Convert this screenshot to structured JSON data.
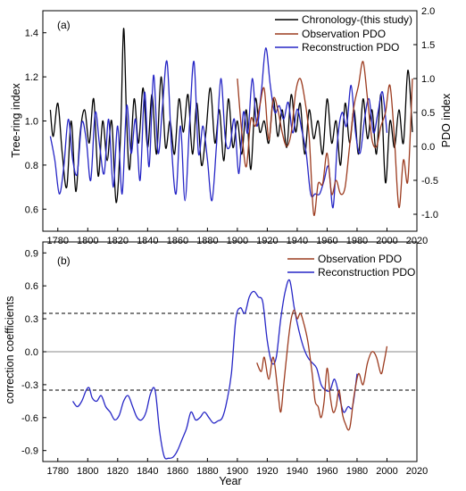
{
  "chart_data": [
    {
      "panel": "(a)",
      "type": "line",
      "xlim": [
        1770,
        2020
      ],
      "ylim_left": [
        0.5,
        1.5
      ],
      "ylim_right": [
        -1.25,
        2.0
      ],
      "ylabel_left": "Tree-ring index",
      "ylabel_right": "PDO index",
      "x_ticks": [
        "1780",
        "1800",
        "1820",
        "1840",
        "1860",
        "1880",
        "1900",
        "1920",
        "1940",
        "1960",
        "1980",
        "2000",
        "2020"
      ],
      "y_ticks_left": [
        "0.6",
        "0.8",
        "1.0",
        "1.2",
        "1.4"
      ],
      "y_ticks_right": [
        "-1.0",
        "-0.5",
        "0.0",
        "0.5",
        "1.0",
        "1.5",
        "2.0"
      ],
      "legend_position": "top-right",
      "series": [
        {
          "name": "Chronology-(this study)",
          "color": "#000000",
          "axis": "left",
          "x": [
            1775,
            1777,
            1780,
            1783,
            1786,
            1789,
            1792,
            1795,
            1798,
            1801,
            1804,
            1807,
            1810,
            1813,
            1816,
            1819,
            1822,
            1824,
            1826,
            1828,
            1831,
            1834,
            1837,
            1840,
            1843,
            1846,
            1849,
            1852,
            1855,
            1858,
            1861,
            1864,
            1867,
            1870,
            1873,
            1876,
            1879,
            1882,
            1885,
            1888,
            1891,
            1894,
            1897,
            1900,
            1903,
            1906,
            1909,
            1912,
            1915,
            1918,
            1921,
            1924,
            1927,
            1930,
            1933,
            1936,
            1939,
            1942,
            1945,
            1948,
            1951,
            1954,
            1957,
            1960,
            1963,
            1966,
            1969,
            1972,
            1975,
            1978,
            1981,
            1984,
            1987,
            1990,
            1993,
            1996,
            1999,
            2002,
            2005,
            2008,
            2011,
            2014,
            2017
          ],
          "values": [
            1.05,
            0.93,
            1.08,
            0.85,
            0.7,
            1.0,
            0.68,
            0.95,
            1.05,
            0.9,
            1.1,
            0.75,
            1.0,
            0.82,
            1.0,
            0.63,
            0.95,
            1.42,
            1.0,
            0.78,
            1.1,
            0.9,
            1.15,
            0.88,
            1.12,
            0.85,
            1.2,
            0.88,
            1.0,
            0.85,
            1.1,
            0.95,
            1.12,
            0.85,
            1.08,
            0.8,
            0.95,
            1.15,
            0.9,
            1.05,
            0.82,
            1.1,
            0.88,
            1.0,
            0.85,
            1.05,
            0.78,
            1.1,
            0.95,
            1.0,
            0.9,
            1.1,
            0.93,
            1.05,
            0.88,
            1.12,
            0.95,
            1.08,
            0.85,
            1.05,
            0.92,
            1.0,
            0.85,
            1.1,
            0.9,
            1.0,
            0.8,
            1.08,
            0.9,
            1.05,
            0.85,
            1.1,
            0.92,
            1.05,
            0.85,
            1.12,
            0.72,
            1.0,
            0.88,
            1.05,
            0.9,
            1.23,
            0.95
          ]
        },
        {
          "name": "Observation PDO",
          "color": "#9c3b1f",
          "axis": "right",
          "x": [
            1900,
            1903,
            1906,
            1909,
            1912,
            1915,
            1918,
            1921,
            1924,
            1927,
            1930,
            1933,
            1936,
            1939,
            1942,
            1945,
            1948,
            1951,
            1954,
            1957,
            1960,
            1963,
            1966,
            1969,
            1972,
            1975,
            1978,
            1981,
            1984,
            1987,
            1990,
            1993,
            1996,
            1999,
            2002,
            2005,
            2008,
            2011,
            2014,
            2017
          ],
          "values": [
            1.0,
            0.2,
            -0.3,
            0.4,
            0.3,
            0.6,
            0.85,
            0.1,
            0.7,
            0.55,
            0.2,
            0.0,
            0.2,
            0.8,
            1.0,
            0.7,
            0.15,
            -1.0,
            -0.55,
            -0.55,
            -0.1,
            -0.7,
            -0.5,
            -0.7,
            -0.6,
            0.0,
            0.6,
            0.9,
            1.25,
            0.7,
            0.1,
            0.0,
            0.3,
            0.5,
            0.9,
            0.1,
            -0.9,
            -0.2,
            -0.5,
            1.0
          ]
        },
        {
          "name": "Reconstruction PDO",
          "color": "#2626c6",
          "axis": "right",
          "x": [
            1775,
            1778,
            1781,
            1784,
            1787,
            1790,
            1793,
            1796,
            1799,
            1802,
            1805,
            1808,
            1811,
            1814,
            1817,
            1820,
            1823,
            1826,
            1829,
            1832,
            1835,
            1838,
            1841,
            1844,
            1847,
            1850,
            1853,
            1856,
            1859,
            1862,
            1865,
            1868,
            1871,
            1874,
            1877,
            1880,
            1883,
            1886,
            1889,
            1892,
            1895,
            1898,
            1901,
            1904,
            1907,
            1910,
            1913,
            1916,
            1919,
            1922,
            1925,
            1928,
            1931,
            1934,
            1937,
            1940,
            1943,
            1946,
            1949,
            1952,
            1955,
            1958,
            1961,
            1964,
            1967,
            1970,
            1973,
            1976,
            1979,
            1982,
            1985,
            1988,
            1991,
            1994,
            1997,
            2000
          ],
          "values": [
            0.15,
            -0.2,
            -0.7,
            -0.3,
            0.4,
            -0.2,
            -0.4,
            0.35,
            0.1,
            -0.5,
            0.5,
            0.0,
            -0.4,
            0.4,
            -0.6,
            0.3,
            -0.7,
            0.6,
            -0.1,
            0.4,
            -0.5,
            0.8,
            -0.3,
            1.05,
            -0.1,
            0.6,
            1.25,
            0.0,
            -0.7,
            0.3,
            -0.8,
            0.3,
            1.25,
            -0.1,
            0.3,
            -0.2,
            -0.8,
            0.0,
            1.0,
            0.1,
            0.0,
            0.4,
            -0.4,
            0.5,
            0.2,
            1.0,
            0.3,
            0.8,
            1.45,
            0.9,
            0.5,
            0.6,
            0.4,
            0.65,
            0.2,
            0.55,
            0.25,
            -0.1,
            -0.7,
            -0.7,
            -0.7,
            -0.5,
            -0.3,
            -0.9,
            0.1,
            0.5,
            0.3,
            0.9,
            0.2,
            -0.1,
            0.4,
            0.7,
            0.2,
            0.5,
            0.8,
            0.2
          ]
        }
      ]
    },
    {
      "panel": "(b)",
      "type": "line",
      "xlim": [
        1770,
        2020
      ],
      "ylim": [
        -1.0,
        1.0
      ],
      "xlabel": "Year",
      "ylabel": "correction coefficients",
      "x_ticks": [
        "1780",
        "1800",
        "1820",
        "1840",
        "1860",
        "1880",
        "1900",
        "1920",
        "1940",
        "1960",
        "1980",
        "2000",
        "2020"
      ],
      "y_ticks": [
        "-0.9",
        "-0.6",
        "-0.3",
        "0.0",
        "0.3",
        "0.6",
        "0.9"
      ],
      "significance_lines": [
        0.35,
        -0.35
      ],
      "zero_line": 0.0,
      "legend_position": "top-right",
      "series": [
        {
          "name": "Observation PDO",
          "color": "#9c3b1f",
          "x": [
            1913,
            1916,
            1918,
            1921,
            1924,
            1927,
            1929,
            1931,
            1934,
            1936,
            1938,
            1940,
            1942,
            1944,
            1947,
            1950,
            1952,
            1954,
            1956,
            1958,
            1960,
            1962,
            1964,
            1966,
            1968,
            1970,
            1972,
            1975,
            1978,
            1981,
            1984,
            1987,
            1990,
            1993,
            1996,
            1998,
            2000
          ],
          "values": [
            -0.1,
            -0.18,
            -0.05,
            -0.25,
            -0.05,
            -0.35,
            -0.55,
            -0.3,
            0.1,
            0.3,
            0.38,
            0.3,
            0.35,
            0.28,
            0.1,
            -0.2,
            -0.45,
            -0.5,
            -0.6,
            -0.45,
            -0.15,
            -0.4,
            -0.55,
            -0.5,
            -0.35,
            -0.55,
            -0.65,
            -0.7,
            -0.4,
            -0.2,
            -0.3,
            -0.1,
            0.0,
            -0.05,
            -0.2,
            -0.1,
            0.05
          ]
        },
        {
          "name": "Reconstruction PDO",
          "color": "#2626c6",
          "x": [
            1790,
            1793,
            1796,
            1799,
            1801,
            1803,
            1806,
            1809,
            1812,
            1815,
            1818,
            1821,
            1824,
            1827,
            1830,
            1833,
            1836,
            1839,
            1842,
            1845,
            1848,
            1851,
            1854,
            1857,
            1860,
            1863,
            1866,
            1869,
            1872,
            1875,
            1878,
            1881,
            1884,
            1887,
            1890,
            1893,
            1896,
            1899,
            1902,
            1905,
            1908,
            1911,
            1914,
            1917,
            1920,
            1923,
            1926,
            1929,
            1932,
            1935,
            1938,
            1941,
            1944,
            1947,
            1950,
            1953,
            1956,
            1959,
            1962,
            1965,
            1968,
            1971,
            1974,
            1977,
            1980
          ],
          "values": [
            -0.45,
            -0.5,
            -0.45,
            -0.35,
            -0.33,
            -0.42,
            -0.45,
            -0.4,
            -0.5,
            -0.55,
            -0.62,
            -0.58,
            -0.45,
            -0.4,
            -0.5,
            -0.6,
            -0.62,
            -0.55,
            -0.38,
            -0.35,
            -0.72,
            -0.95,
            -0.97,
            -0.96,
            -0.9,
            -0.8,
            -0.7,
            -0.55,
            -0.62,
            -0.6,
            -0.55,
            -0.6,
            -0.65,
            -0.63,
            -0.6,
            -0.45,
            -0.2,
            0.3,
            0.4,
            0.35,
            0.5,
            0.55,
            0.5,
            0.45,
            0.1,
            -0.1,
            -0.05,
            0.3,
            0.55,
            0.65,
            0.4,
            0.2,
            0.05,
            -0.05,
            -0.1,
            -0.15,
            -0.3,
            -0.35,
            -0.35,
            -0.25,
            -0.4,
            -0.55,
            -0.5,
            -0.5,
            -0.2
          ]
        }
      ]
    }
  ]
}
